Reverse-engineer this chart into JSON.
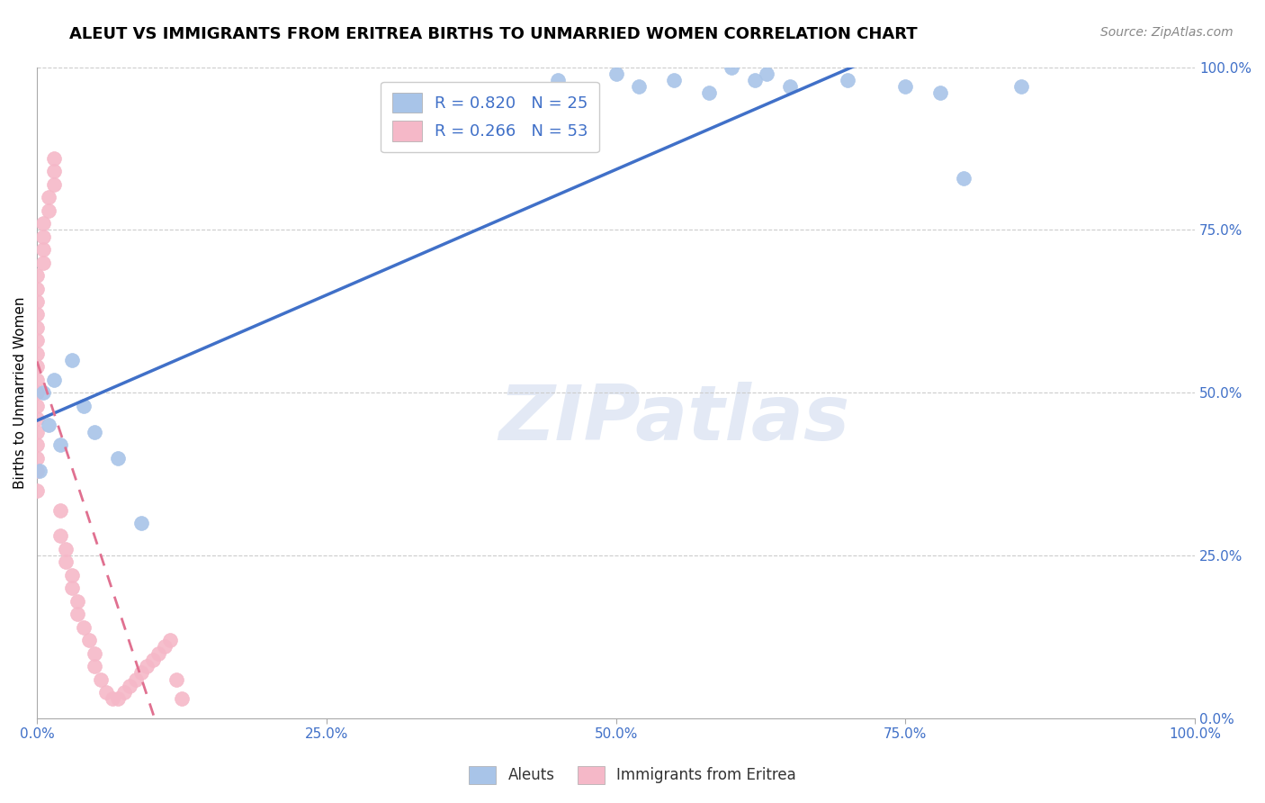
{
  "title": "ALEUT VS IMMIGRANTS FROM ERITREA BIRTHS TO UNMARRIED WOMEN CORRELATION CHART",
  "source": "Source: ZipAtlas.com",
  "ylabel": "Births to Unmarried Women",
  "aleut_R": 0.82,
  "aleut_N": 25,
  "eritrea_R": 0.266,
  "eritrea_N": 53,
  "aleut_color": "#a8c4e8",
  "eritrea_color": "#f5b8c8",
  "aleut_line_color": "#4070c8",
  "eritrea_line_color": "#e07090",
  "legend_label_aleut": "Aleuts",
  "legend_label_eritrea": "Immigrants from Eritrea",
  "watermark_text": "ZIPatlas",
  "aleut_x": [
    0.2,
    0.5,
    1.0,
    1.5,
    2.0,
    3.0,
    4.0,
    5.0,
    7.0,
    9.0,
    40.0,
    45.0,
    50.0,
    52.0,
    55.0,
    58.0,
    60.0,
    62.0,
    63.0,
    65.0,
    70.0,
    75.0,
    78.0,
    80.0,
    85.0
  ],
  "aleut_y": [
    38,
    50,
    45,
    52,
    42,
    55,
    48,
    44,
    40,
    30,
    95,
    98,
    99,
    97,
    98,
    96,
    100,
    98,
    99,
    97,
    98,
    97,
    96,
    83,
    97
  ],
  "eritrea_x": [
    0.0,
    0.0,
    0.0,
    0.0,
    0.0,
    0.0,
    0.0,
    0.0,
    0.0,
    0.0,
    0.0,
    0.0,
    0.0,
    0.0,
    0.0,
    0.0,
    0.0,
    0.5,
    0.5,
    0.5,
    0.5,
    1.0,
    1.0,
    1.5,
    1.5,
    1.5,
    2.0,
    2.0,
    2.5,
    2.5,
    3.0,
    3.0,
    3.5,
    3.5,
    4.0,
    4.5,
    5.0,
    5.0,
    5.5,
    6.0,
    6.5,
    7.0,
    7.5,
    8.0,
    8.5,
    9.0,
    9.5,
    10.0,
    10.5,
    11.0,
    11.5,
    12.0,
    12.5
  ],
  "eritrea_y": [
    35,
    38,
    40,
    42,
    44,
    46,
    48,
    50,
    52,
    54,
    56,
    58,
    60,
    62,
    64,
    66,
    68,
    70,
    72,
    74,
    76,
    78,
    80,
    82,
    84,
    86,
    32,
    28,
    26,
    24,
    22,
    20,
    18,
    16,
    14,
    12,
    10,
    8,
    6,
    4,
    3,
    3,
    4,
    5,
    6,
    7,
    8,
    9,
    10,
    11,
    12,
    6,
    3
  ],
  "xlim": [
    0,
    100
  ],
  "ylim": [
    0,
    100
  ],
  "x_ticks": [
    0,
    25,
    50,
    75,
    100
  ],
  "y_ticks": [
    0,
    25,
    50,
    75,
    100
  ],
  "x_tick_labels": [
    "0.0%",
    "25.0%",
    "50.0%",
    "75.0%",
    "100.0%"
  ],
  "y_tick_labels": [
    "0.0%",
    "25.0%",
    "50.0%",
    "75.0%",
    "100.0%"
  ],
  "tick_color": "#4070c8",
  "grid_color": "#cccccc",
  "title_fontsize": 13,
  "tick_fontsize": 11,
  "source_fontsize": 10
}
